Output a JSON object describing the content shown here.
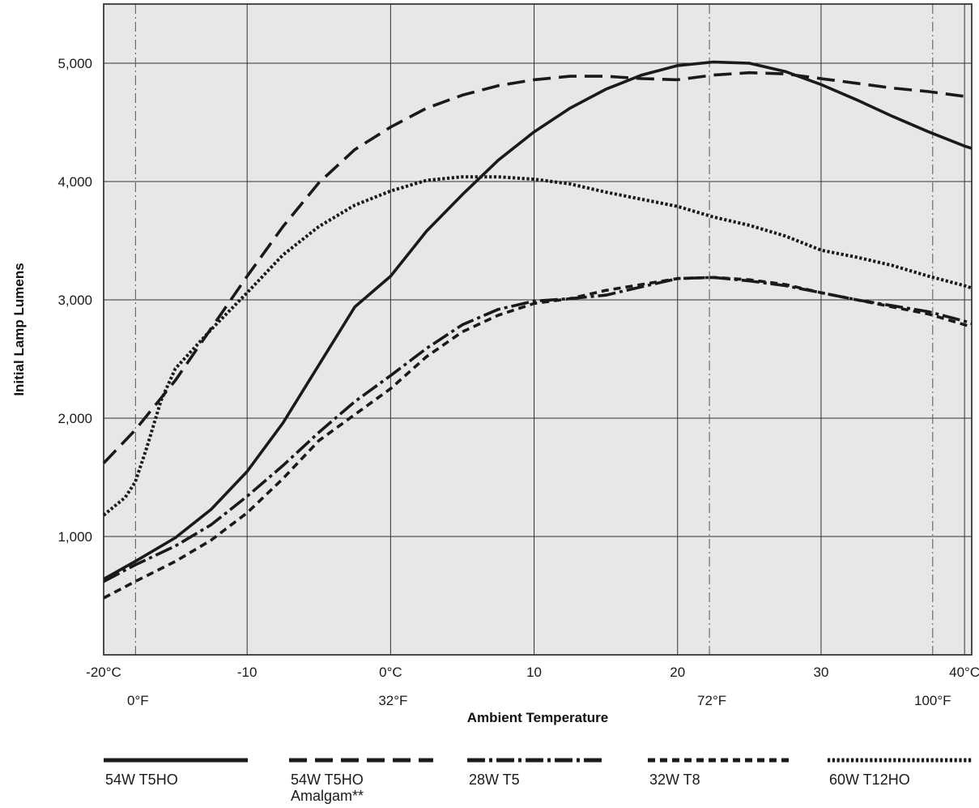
{
  "chart_data": {
    "type": "line",
    "xlabel": "Ambient Temperature",
    "ylabel": "Initial Lamp Lumens",
    "xlim": [
      -20,
      40.5
    ],
    "ylim": [
      0,
      5500
    ],
    "grid": true,
    "legend_position": "bottom",
    "x_ticks": [
      {
        "value": -20,
        "label": "-20°C"
      },
      {
        "value": -10,
        "label": "-10"
      },
      {
        "value": 0,
        "label": "0°C"
      },
      {
        "value": 10,
        "label": "10"
      },
      {
        "value": 20,
        "label": "20"
      },
      {
        "value": 30,
        "label": "30"
      },
      {
        "value": 40,
        "label": "40°C"
      }
    ],
    "fahrenheit_ticks": [
      {
        "value": -17.78,
        "label": "0°F"
      },
      {
        "value": 0,
        "label": "32°F"
      },
      {
        "value": 22.22,
        "label": "72°F"
      },
      {
        "value": 37.78,
        "label": "100°F"
      }
    ],
    "y_ticks": [
      {
        "value": 1000,
        "label": "1,000"
      },
      {
        "value": 2000,
        "label": "2,000"
      },
      {
        "value": 3000,
        "label": "3,000"
      },
      {
        "value": 4000,
        "label": "4,000"
      },
      {
        "value": 5000,
        "label": "5,000"
      }
    ],
    "series": [
      {
        "name": "54W T5HO",
        "name_line2": "",
        "style": "solid",
        "x": [
          -20,
          -17.8,
          -15,
          -12.5,
          -10,
          -7.5,
          -5,
          -2.5,
          0,
          2.5,
          5,
          7.5,
          10,
          12.5,
          15,
          17.5,
          20,
          22.5,
          25,
          27.5,
          30,
          32.5,
          35,
          37.5,
          40,
          40.5
        ],
        "values": [
          640,
          790,
          990,
          1230,
          1550,
          1960,
          2450,
          2940,
          3200,
          3580,
          3890,
          4180,
          4420,
          4620,
          4780,
          4900,
          4980,
          5010,
          5000,
          4930,
          4820,
          4690,
          4550,
          4420,
          4300,
          4280
        ]
      },
      {
        "name": "54W T5HO",
        "name_line2": "Amalgam**",
        "style": "dashed",
        "x": [
          -20,
          -17.8,
          -15,
          -12.5,
          -10,
          -7.5,
          -5,
          -2.5,
          0,
          2.5,
          5,
          7.5,
          10,
          12.5,
          15,
          17.5,
          20,
          22.5,
          25,
          27.5,
          30,
          32.5,
          35,
          37.5,
          40,
          40.5
        ],
        "values": [
          1620,
          1900,
          2320,
          2760,
          3200,
          3620,
          3990,
          4270,
          4460,
          4620,
          4730,
          4810,
          4860,
          4890,
          4890,
          4870,
          4860,
          4900,
          4920,
          4910,
          4870,
          4830,
          4790,
          4760,
          4720,
          4710
        ]
      },
      {
        "name": "28W T5",
        "name_line2": "",
        "style": "dashdot",
        "x": [
          -20,
          -17.8,
          -15,
          -12.5,
          -10,
          -7.5,
          -5,
          -2.5,
          0,
          2.5,
          5,
          7.5,
          10,
          12.5,
          15,
          17.5,
          20,
          22.5,
          25,
          27.5,
          30,
          32.5,
          35,
          37.5,
          40,
          40.5
        ],
        "values": [
          620,
          760,
          920,
          1100,
          1340,
          1600,
          1880,
          2140,
          2360,
          2590,
          2790,
          2920,
          2990,
          3010,
          3040,
          3110,
          3180,
          3190,
          3160,
          3120,
          3060,
          3000,
          2950,
          2900,
          2820,
          2800
        ]
      },
      {
        "name": "32W T8",
        "name_line2": "",
        "style": "shortdash",
        "x": [
          -20,
          -17.8,
          -15,
          -12.5,
          -10,
          -7.5,
          -5,
          -2.5,
          0,
          2.5,
          5,
          7.5,
          10,
          12.5,
          15,
          17.5,
          20,
          22.5,
          25,
          27.5,
          30,
          32.5,
          35,
          37.5,
          40,
          40.5
        ],
        "values": [
          480,
          620,
          790,
          970,
          1200,
          1490,
          1810,
          2030,
          2250,
          2520,
          2730,
          2870,
          2970,
          3010,
          3080,
          3130,
          3180,
          3190,
          3170,
          3130,
          3060,
          3000,
          2940,
          2880,
          2790,
          2770
        ]
      },
      {
        "name": "60W T12HO",
        "name_line2": "",
        "style": "dotted",
        "x": [
          -20,
          -18.5,
          -17.8,
          -17,
          -16,
          -15,
          -12.5,
          -10,
          -7.5,
          -5,
          -2.5,
          0,
          2.5,
          5,
          7.5,
          10,
          12.5,
          15,
          17.5,
          20,
          22.5,
          25,
          27.5,
          30,
          32.5,
          35,
          37.5,
          40,
          40.5
        ],
        "values": [
          1180,
          1330,
          1460,
          1750,
          2150,
          2420,
          2750,
          3060,
          3380,
          3620,
          3800,
          3920,
          4010,
          4040,
          4040,
          4020,
          3980,
          3910,
          3850,
          3790,
          3700,
          3630,
          3540,
          3420,
          3360,
          3290,
          3200,
          3120,
          3100
        ]
      }
    ]
  }
}
